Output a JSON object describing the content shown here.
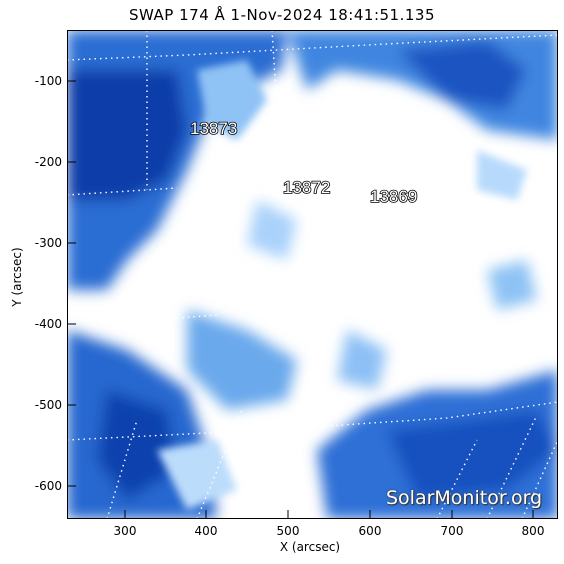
{
  "title": "SWAP  174 Å   1-Nov-2024 18:41:51.135",
  "axes": {
    "xlabel": "X (arcsec)",
    "ylabel": "Y (arcsec)",
    "xticks": [
      "300",
      "400",
      "500",
      "600",
      "700",
      "800"
    ],
    "yticks": [
      "-100",
      "-200",
      "-300",
      "-400",
      "-500",
      "-600"
    ]
  },
  "regions": [
    "13873",
    "13872",
    "13869"
  ],
  "watermark": "SolarMonitor.org",
  "colors": {
    "dark_blue": "#0a3fae",
    "mid_blue": "#3f86e0",
    "light_blue": "#a9d2fb",
    "plot_bg": "#ffffff"
  }
}
